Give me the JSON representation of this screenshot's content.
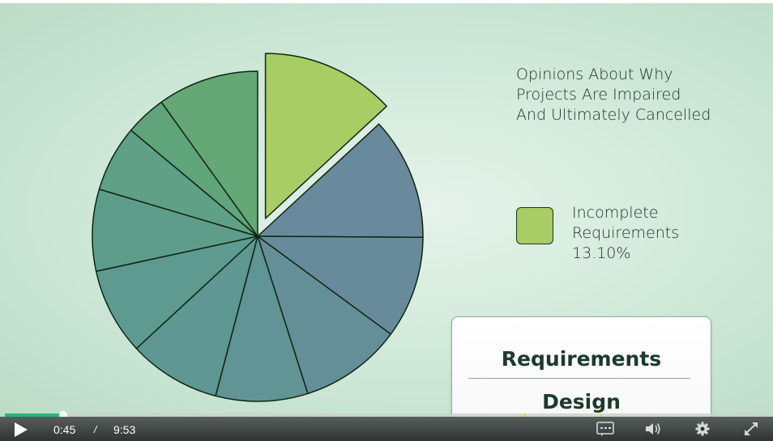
{
  "slide": {
    "title_lines": [
      "Opinions About Why",
      "Projects Are Impaired",
      "And Ultimately Cancelled"
    ],
    "legend": {
      "label_lines": [
        "Incomplete",
        "Requirements"
      ],
      "value": "13.10%",
      "color": "#a8cd64"
    },
    "card_items": [
      "Requirements",
      "Design"
    ]
  },
  "chart_data": {
    "type": "pie",
    "exploded_slice": 0,
    "highlight_value": 13.1,
    "highlight_label": "Incomplete Requirements",
    "slices": [
      {
        "value": 13.1,
        "color": "#a8cd64"
      },
      {
        "value": 12.0,
        "color": "#688a9c"
      },
      {
        "value": 10.0,
        "color": "#688b9c"
      },
      {
        "value": 10.0,
        "color": "#658f98"
      },
      {
        "value": 9.0,
        "color": "#619494"
      },
      {
        "value": 9.0,
        "color": "#5f9792"
      },
      {
        "value": 8.5,
        "color": "#5e9a8f"
      },
      {
        "value": 8.0,
        "color": "#5f9d8b"
      },
      {
        "value": 6.5,
        "color": "#5fa086"
      },
      {
        "value": 4.0,
        "color": "#60a47b"
      },
      {
        "value": 9.9,
        "color": "#65a776"
      }
    ]
  },
  "player": {
    "current_time": "0:45",
    "separator": "/",
    "total_time": "9:53",
    "progress": 0.076,
    "chapter_markers": [
      0.68,
      0.78
    ],
    "icons": [
      "play-icon",
      "captions-icon",
      "volume-icon",
      "settings-icon",
      "fullscreen-icon"
    ],
    "accent_color": "#2bb673"
  }
}
